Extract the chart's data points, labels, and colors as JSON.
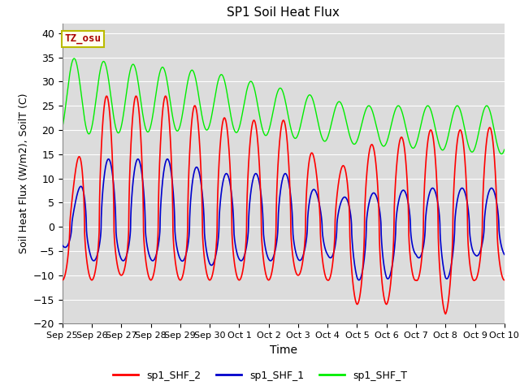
{
  "title": "SP1 Soil Heat Flux",
  "xlabel": "Time",
  "ylabel": "Soil Heat Flux (W/m2), SoilT (C)",
  "ylim": [
    -20,
    42
  ],
  "yticks": [
    -20,
    -15,
    -10,
    -5,
    0,
    5,
    10,
    15,
    20,
    25,
    30,
    35,
    40
  ],
  "bg_color": "#dcdcdc",
  "grid_color": "#ffffff",
  "color_shf2": "#ff0000",
  "color_shf1": "#0000cc",
  "color_shfT": "#00ee00",
  "tz_label": "TZ_osu",
  "tz_box_facecolor": "#fffff0",
  "tz_box_edgecolor": "#bbbb00",
  "tz_text_color": "#aa0000",
  "x_tick_labels": [
    "Sep 25",
    "Sep 26",
    "Sep 27",
    "Sep 28",
    "Sep 29",
    "Sep 30",
    "Oct 1",
    "Oct 2",
    "Oct 3",
    "Oct 4",
    "Oct 5",
    "Oct 6",
    "Oct 7",
    "Oct 8",
    "Oct 9",
    "Oct 10"
  ],
  "x_tick_values": [
    0,
    24,
    48,
    72,
    96,
    120,
    144,
    168,
    192,
    216,
    240,
    264,
    288,
    312,
    336,
    360
  ],
  "legend_labels": [
    "sp1_SHF_2",
    "sp1_SHF_1",
    "sp1_SHF_T"
  ]
}
